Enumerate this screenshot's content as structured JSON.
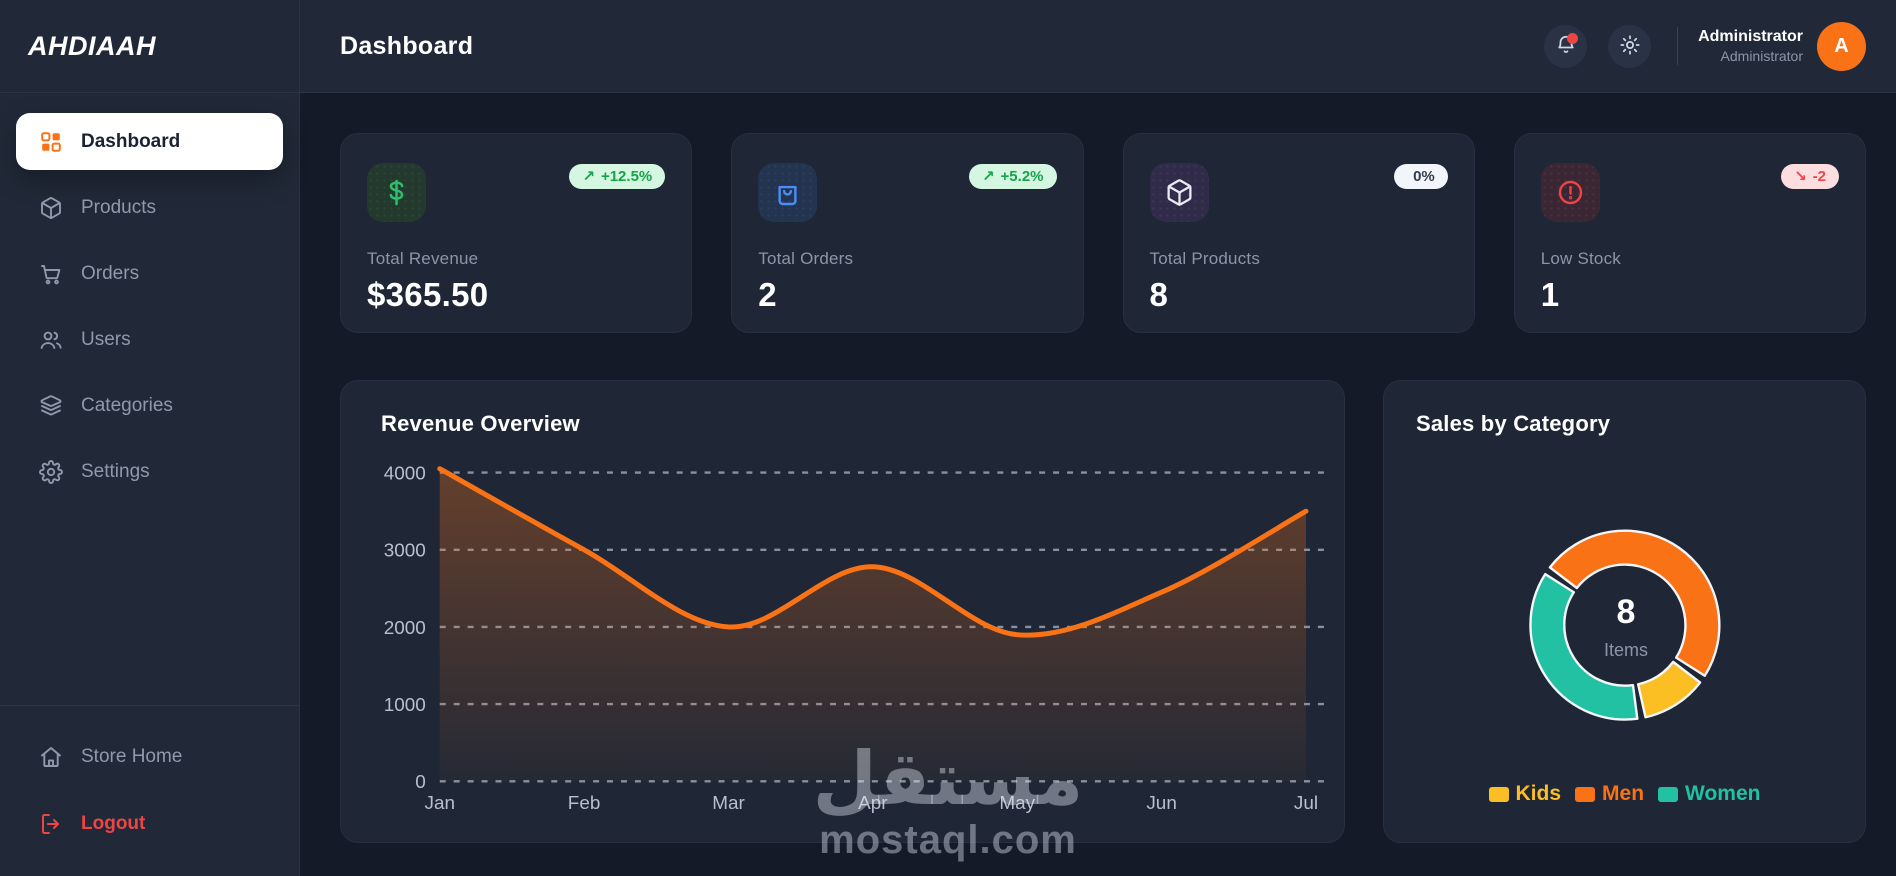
{
  "brand": {
    "logo": "AHDIAAH"
  },
  "sidebar": {
    "items": [
      {
        "label": "Dashboard",
        "icon": "grid-icon",
        "active": true
      },
      {
        "label": "Products",
        "icon": "box-icon"
      },
      {
        "label": "Orders",
        "icon": "cart-icon"
      },
      {
        "label": "Users",
        "icon": "users-icon"
      },
      {
        "label": "Categories",
        "icon": "layers-icon"
      },
      {
        "label": "Settings",
        "icon": "gear-icon"
      }
    ],
    "footer_items": [
      {
        "label": "Store Home",
        "icon": "home-icon"
      },
      {
        "label": "Logout",
        "icon": "logout-icon",
        "danger": true
      }
    ]
  },
  "header": {
    "title": "Dashboard",
    "user": {
      "name": "Administrator",
      "role": "Administrator",
      "avatar_initial": "A"
    }
  },
  "stats": [
    {
      "label": "Total Revenue",
      "value": "$365.50",
      "icon": "dollar-icon",
      "badge": {
        "arrow": "↗",
        "text": "+12.5%",
        "type": "up"
      }
    },
    {
      "label": "Total Orders",
      "value": "2",
      "icon": "shopping-bag-icon",
      "badge": {
        "arrow": "↗",
        "text": "+5.2%",
        "type": "up"
      }
    },
    {
      "label": "Total Products",
      "value": "8",
      "icon": "package-icon",
      "badge": {
        "arrow": "",
        "text": "0%",
        "type": "neutral"
      }
    },
    {
      "label": "Low Stock",
      "value": "1",
      "icon": "alert-circle-icon",
      "badge": {
        "arrow": "↘",
        "text": "-2",
        "type": "down"
      }
    }
  ],
  "chart_data": [
    {
      "type": "line",
      "title": "Revenue Overview",
      "x": [
        "Jan",
        "Feb",
        "Mar",
        "Apr",
        "May",
        "Jun",
        "Jul"
      ],
      "values": [
        4050,
        3000,
        2000,
        2780,
        1900,
        2450,
        3500
      ],
      "xlabel": "",
      "ylabel": "",
      "ylim": [
        0,
        4000
      ],
      "yticks": [
        0,
        1000,
        2000,
        3000,
        4000
      ],
      "grid": "dotted horizontal",
      "line_color": "#f97316",
      "area_fill": "orange gradient fading down",
      "legend_position": "none"
    },
    {
      "type": "donut",
      "title": "Sales by Category",
      "center_value": "8",
      "center_label": "Items",
      "start_angle_deg": -55,
      "segments": [
        {
          "label": "Men",
          "value": 4,
          "color": "#f97316"
        },
        {
          "label": "Kids",
          "value": 1,
          "color": "#fbbf24"
        },
        {
          "label": "Women",
          "value": 3,
          "color": "#22c1a3"
        }
      ],
      "legend": [
        {
          "label": "Kids",
          "color": "#fbbf24"
        },
        {
          "label": "Men",
          "color": "#f97316"
        },
        {
          "label": "Women",
          "color": "#22c1a3"
        }
      ],
      "legend_position": "bottom"
    }
  ],
  "watermark": {
    "line1": "مستقل",
    "line2": "mostaql.com"
  },
  "colors": {
    "accent": "#f97316",
    "danger": "#ef4444",
    "success": "#16a34a"
  }
}
